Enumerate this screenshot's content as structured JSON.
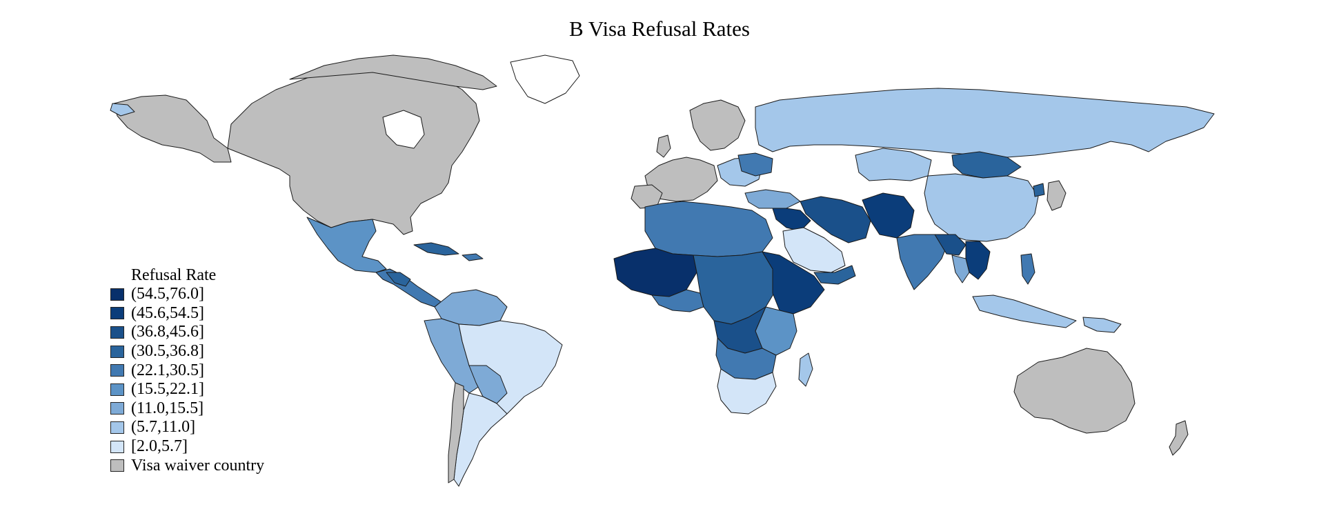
{
  "title": "B Visa Refusal Rates",
  "legend": {
    "title": "Refusal Rate",
    "items": [
      {
        "label": "(54.5,76.0]",
        "color": "#08306b"
      },
      {
        "label": "(45.6,54.5]",
        "color": "#0b3d7a"
      },
      {
        "label": "(36.8,45.6]",
        "color": "#1a508a"
      },
      {
        "label": "(30.5,36.8]",
        "color": "#2a649c"
      },
      {
        "label": "(22.1,30.5]",
        "color": "#4179b1"
      },
      {
        "label": "(15.5,22.1]",
        "color": "#5c93c6"
      },
      {
        "label": "(11.0,15.5]",
        "color": "#7eaad6"
      },
      {
        "label": "(5.7,11.0]",
        "color": "#a4c7ea"
      },
      {
        "label": "[2.0,5.7]",
        "color": "#d3e5f8"
      },
      {
        "label": "Visa waiver country",
        "color": "#bebebe"
      }
    ]
  },
  "colors": {
    "border": "#1a1a1a",
    "water": "#ffffff"
  }
}
